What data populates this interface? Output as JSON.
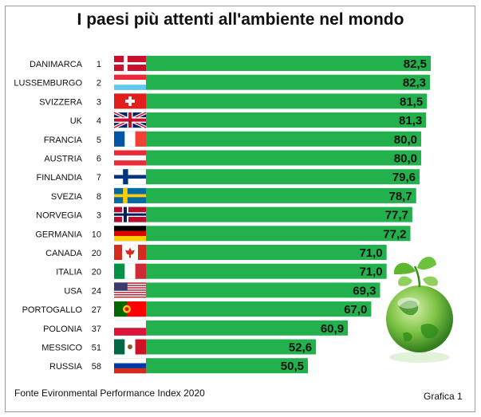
{
  "title": "I paesi più attenti all'ambiente nel mondo",
  "source": "Fonte Evironmental Performance Index 2020",
  "figure_label": "Grafica 1",
  "colors": {
    "bar": "#22b14c",
    "frame": "#9a9a9a",
    "text": "#111111"
  },
  "chart_data": {
    "type": "bar",
    "orientation": "horizontal",
    "categories": [
      "DANIMARCA",
      "LUSSEMBURGO",
      "SVIZZERA",
      "UK",
      "FRANCIA",
      "AUSTRIA",
      "FINLANDIA",
      "SVEZIA",
      "NORVEGIA",
      "GERMANIA",
      "CANADA",
      "ITALIA",
      "USA",
      "PORTOGALLO",
      "POLONIA",
      "MESSICO",
      "RUSSIA"
    ],
    "ranks": [
      "1",
      "2",
      "3",
      "4",
      "5",
      "6",
      "7",
      "8",
      "3",
      "10",
      "20",
      "20",
      "24",
      "27",
      "37",
      "51",
      "58"
    ],
    "values": [
      82.5,
      82.3,
      81.5,
      81.3,
      80.0,
      80.0,
      79.6,
      78.7,
      77.7,
      77.2,
      71.0,
      71.0,
      69.3,
      67.0,
      60.9,
      52.6,
      50.5
    ],
    "value_labels": [
      "82,5",
      "82,3",
      "81,5",
      "81,3",
      "80,0",
      "80,0",
      "79,6",
      "78,7",
      "77,7",
      "77,2",
      "71,0",
      "71,0",
      "69,3",
      "67,0",
      "60,9",
      "52,6",
      "50,5"
    ],
    "flags": [
      "denmark-flag",
      "luxembourg-flag",
      "switzerland-flag",
      "uk-flag",
      "france-flag",
      "austria-flag",
      "finland-flag",
      "sweden-flag",
      "norway-flag",
      "germany-flag",
      "canada-flag",
      "italy-flag",
      "usa-flag",
      "portugal-flag",
      "poland-flag",
      "mexico-flag",
      "russia-flag"
    ],
    "xlim": [
      0,
      82.5
    ],
    "grid": false,
    "legend": "none",
    "decoration": "green-globe-with-sprout-icon"
  }
}
